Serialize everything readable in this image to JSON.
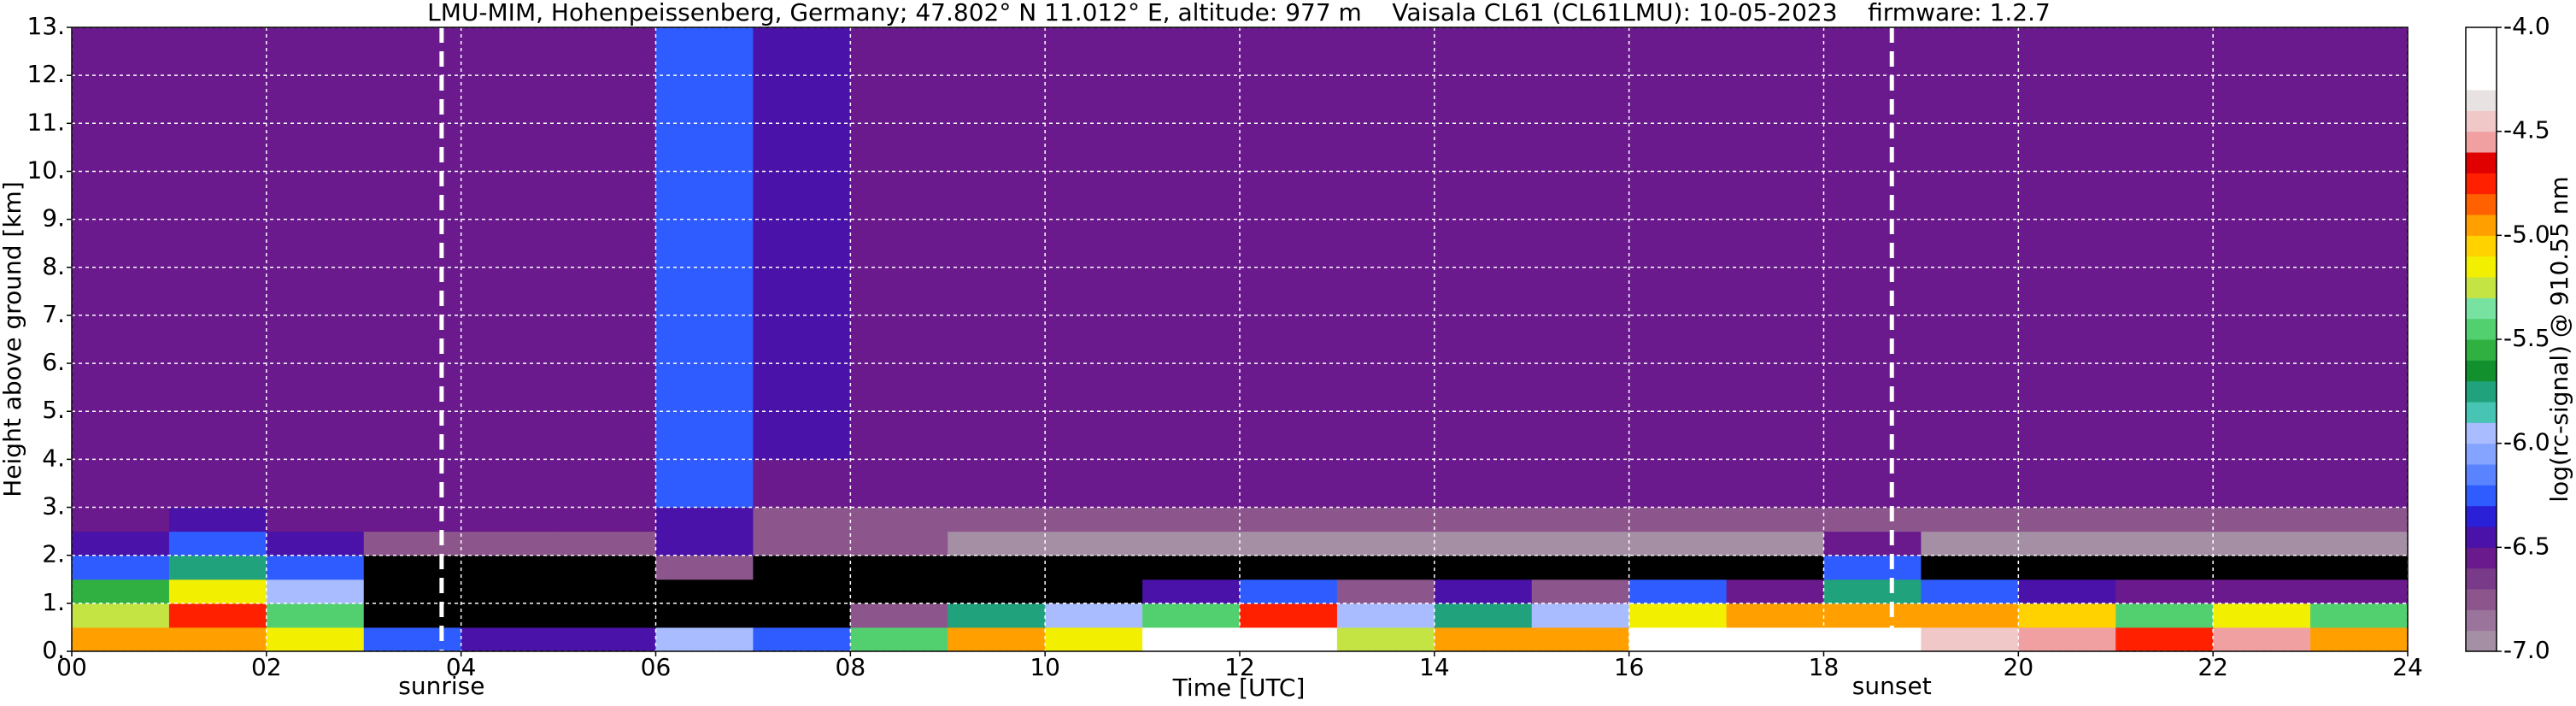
{
  "chart_data": {
    "type": "heatmap",
    "title": "LMU-MIM, Hohenpeissenberg, Germany; 47.802° N 11.012° E, altitude: 977 m    Vaisala CL61 (CL61LMU): 10-05-2023    firmware: 1.2.7",
    "x_label": "Time [UTC]",
    "y_label": "Height above ground [km]",
    "colorbar_label": "log(rc-signal) @ 910.55 nm",
    "xlim": [
      0,
      24
    ],
    "ylim": [
      0,
      13
    ],
    "xticks": [
      {
        "value": 0,
        "label": "00"
      },
      {
        "value": 2,
        "label": "02"
      },
      {
        "value": 4,
        "label": "04"
      },
      {
        "value": 6,
        "label": "06"
      },
      {
        "value": 8,
        "label": "08"
      },
      {
        "value": 10,
        "label": "10"
      },
      {
        "value": 12,
        "label": "12"
      },
      {
        "value": 14,
        "label": "14"
      },
      {
        "value": 16,
        "label": "16"
      },
      {
        "value": 18,
        "label": "18"
      },
      {
        "value": 20,
        "label": "20"
      },
      {
        "value": 22,
        "label": "22"
      },
      {
        "value": 24,
        "label": "24"
      }
    ],
    "yticks": [
      {
        "value": 0,
        "label": "0."
      },
      {
        "value": 1,
        "label": "1."
      },
      {
        "value": 2,
        "label": "2."
      },
      {
        "value": 3,
        "label": "3."
      },
      {
        "value": 4,
        "label": "4."
      },
      {
        "value": 5,
        "label": "5."
      },
      {
        "value": 6,
        "label": "6."
      },
      {
        "value": 7,
        "label": "7."
      },
      {
        "value": 8,
        "label": "8."
      },
      {
        "value": 9,
        "label": "9."
      },
      {
        "value": 10,
        "label": "10."
      },
      {
        "value": 11,
        "label": "11."
      },
      {
        "value": 12,
        "label": "12."
      },
      {
        "value": 13,
        "label": "13."
      }
    ],
    "clim": [
      -7,
      -4
    ],
    "cticks": [
      {
        "value": -4,
        "label": "-4.0"
      },
      {
        "value": -4.5,
        "label": "-4.5"
      },
      {
        "value": -5,
        "label": "-5.0"
      },
      {
        "value": -5.5,
        "label": "-5.5"
      },
      {
        "value": -6,
        "label": "-6.0"
      },
      {
        "value": -6.5,
        "label": "-6.5"
      },
      {
        "value": -7,
        "label": "-7.0"
      }
    ],
    "colormap": [
      "#a58fa5",
      "#9a749a",
      "#8c568c",
      "#7a3a8a",
      "#6a1a8c",
      "#4a12a8",
      "#2a20d8",
      "#2f5cff",
      "#5a84ff",
      "#84a4ff",
      "#a8bcff",
      "#48c4b4",
      "#20a27c",
      "#12902e",
      "#30b040",
      "#52d070",
      "#78e2a0",
      "#c4e444",
      "#f2f000",
      "#ffd200",
      "#ffa000",
      "#ff6000",
      "#ff2000",
      "#e00000",
      "#f0a0a0",
      "#f0c8c8",
      "#e8e2e2",
      "#ffffff",
      "#ffffff",
      "#ffffff"
    ],
    "under_color": "#000000",
    "grid": true,
    "annotations": [
      {
        "label": "sunrise",
        "x": 3.8
      },
      {
        "label": "sunset",
        "x": 18.7
      }
    ],
    "x_edges": [
      0,
      1,
      2,
      3,
      4,
      5,
      6,
      7,
      8,
      9,
      10,
      11,
      12,
      13,
      14,
      15,
      16,
      17,
      18,
      19,
      20,
      21,
      22,
      23,
      24
    ],
    "y_edges": [
      0,
      0.5,
      1,
      1.5,
      2,
      2.5,
      3,
      4,
      13
    ],
    "z": [
      [
        -5.0,
        -5.3,
        -5.6,
        -6.2,
        -6.5,
        -6.6,
        -6.6,
        -6.6
      ],
      [
        -5.0,
        -4.8,
        -5.2,
        -5.8,
        -6.2,
        -6.5,
        -6.6,
        -6.6
      ],
      [
        -5.2,
        -5.5,
        -5.9,
        -6.3,
        -6.5,
        -6.6,
        -6.6,
        -6.6
      ],
      [
        -6.3,
        -7.5,
        -7.5,
        -7.5,
        -6.8,
        -6.6,
        -6.6,
        -6.6
      ],
      [
        -6.5,
        -7.5,
        -7.5,
        -7.5,
        -6.8,
        -6.6,
        -6.6,
        -6.6
      ],
      [
        -6.5,
        -7.5,
        -7.5,
        -7.5,
        -6.8,
        -6.6,
        -6.6,
        -6.6
      ],
      [
        -6.0,
        -7.2,
        -7.2,
        -6.8,
        -6.5,
        -6.5,
        -6.3,
        -6.3
      ],
      [
        -6.2,
        -7.5,
        -7.5,
        -7.3,
        -6.8,
        -6.7,
        -6.6,
        -6.5
      ],
      [
        -5.5,
        -6.8,
        -7.5,
        -7.5,
        -6.8,
        -6.7,
        -6.6,
        -6.6
      ],
      [
        -5.0,
        -5.8,
        -7.2,
        -7.5,
        -6.9,
        -6.7,
        -6.6,
        -6.6
      ],
      [
        -5.2,
        -6.0,
        -7.3,
        -7.5,
        -6.9,
        -6.7,
        -6.6,
        -6.6
      ],
      [
        -4.3,
        -5.5,
        -6.5,
        -7.5,
        -6.9,
        -6.7,
        -6.6,
        -6.6
      ],
      [
        -4.2,
        -4.8,
        -6.3,
        -7.5,
        -6.9,
        -6.7,
        -6.6,
        -6.6
      ],
      [
        -5.3,
        -6.0,
        -6.8,
        -7.5,
        -6.9,
        -6.7,
        -6.6,
        -6.6
      ],
      [
        -5.0,
        -5.8,
        -6.5,
        -7.5,
        -6.9,
        -6.7,
        -6.6,
        -6.6
      ],
      [
        -5.0,
        -5.9,
        -6.8,
        -7.5,
        -6.9,
        -6.7,
        -6.6,
        -6.6
      ],
      [
        -4.3,
        -5.2,
        -6.3,
        -7.5,
        -6.9,
        -6.7,
        -6.6,
        -6.6
      ],
      [
        -4.3,
        -5.0,
        -6.6,
        -7.5,
        -6.9,
        -6.7,
        -6.6,
        -6.6
      ],
      [
        -4.2,
        -4.9,
        -5.8,
        -6.2,
        -6.6,
        -6.7,
        -6.6,
        -6.6
      ],
      [
        -4.4,
        -5.0,
        -6.3,
        -7.5,
        -6.9,
        -6.7,
        -6.6,
        -6.6
      ],
      [
        -4.6,
        -5.1,
        -6.5,
        -7.5,
        -6.9,
        -6.7,
        -6.6,
        -6.6
      ],
      [
        -4.8,
        -5.4,
        -6.6,
        -7.5,
        -6.9,
        -6.7,
        -6.6,
        -6.6
      ],
      [
        -4.6,
        -5.2,
        -6.6,
        -7.5,
        -6.9,
        -6.7,
        -6.6,
        -6.6
      ],
      [
        -5.0,
        -5.5,
        -6.6,
        -7.5,
        -6.9,
        -6.7,
        -6.6,
        -6.6
      ]
    ]
  }
}
